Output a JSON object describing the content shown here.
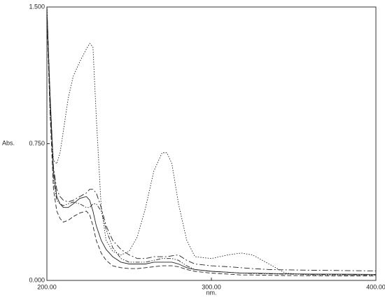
{
  "chart_data": {
    "type": "line",
    "xlabel": "nm.",
    "ylabel": "Abs.",
    "xlim": [
      200,
      400
    ],
    "ylim": [
      0,
      1.5
    ],
    "xticks": [
      {
        "value": 200,
        "label": "200.00"
      },
      {
        "value": 300,
        "label": "300.00"
      },
      {
        "value": 400,
        "label": "400.00"
      }
    ],
    "yticks": [
      {
        "value": 0,
        "label": "0.000"
      },
      {
        "value": 0.75,
        "label": "0.750"
      },
      {
        "value": 1.5,
        "label": "1.500"
      }
    ],
    "x": [
      200,
      202,
      204,
      206,
      208,
      210,
      213,
      216,
      220,
      224,
      226,
      228,
      230,
      233,
      236,
      240,
      245,
      250,
      255,
      260,
      265,
      270,
      273,
      276,
      280,
      285,
      290,
      300,
      310,
      318,
      325,
      335,
      345,
      360,
      380,
      400
    ],
    "series": [
      {
        "color": "#222",
        "dash": "1.5,2",
        "values": [
          1.5,
          0.9,
          0.66,
          0.64,
          0.7,
          0.82,
          1.0,
          1.12,
          1.2,
          1.27,
          1.3,
          1.28,
          0.9,
          0.4,
          0.22,
          0.16,
          0.14,
          0.16,
          0.24,
          0.4,
          0.6,
          0.7,
          0.7,
          0.64,
          0.42,
          0.22,
          0.13,
          0.12,
          0.14,
          0.15,
          0.14,
          0.09,
          0.04,
          0.03,
          0.03,
          0.03
        ]
      },
      {
        "color": "#222",
        "dash": "none",
        "values": [
          1.48,
          1.0,
          0.6,
          0.46,
          0.42,
          0.4,
          0.4,
          0.42,
          0.45,
          0.46,
          0.44,
          0.38,
          0.3,
          0.22,
          0.17,
          0.13,
          0.1,
          0.09,
          0.09,
          0.09,
          0.1,
          0.1,
          0.1,
          0.1,
          0.09,
          0.07,
          0.06,
          0.05,
          0.045,
          0.04,
          0.04,
          0.038,
          0.036,
          0.035,
          0.034,
          0.033
        ]
      },
      {
        "color": "#222",
        "dash": "8,3,2,3",
        "values": [
          1.5,
          1.0,
          0.62,
          0.5,
          0.46,
          0.44,
          0.43,
          0.44,
          0.46,
          0.48,
          0.5,
          0.5,
          0.48,
          0.4,
          0.3,
          0.22,
          0.17,
          0.14,
          0.12,
          0.12,
          0.13,
          0.13,
          0.13,
          0.135,
          0.14,
          0.11,
          0.09,
          0.08,
          0.075,
          0.07,
          0.065,
          0.06,
          0.058,
          0.056,
          0.054,
          0.052
        ]
      },
      {
        "color": "#222",
        "dash": "6,3",
        "values": [
          1.45,
          0.9,
          0.5,
          0.38,
          0.34,
          0.32,
          0.33,
          0.35,
          0.37,
          0.38,
          0.36,
          0.3,
          0.22,
          0.15,
          0.11,
          0.08,
          0.07,
          0.065,
          0.065,
          0.07,
          0.075,
          0.08,
          0.08,
          0.08,
          0.075,
          0.06,
          0.05,
          0.04,
          0.035,
          0.03,
          0.03,
          0.028,
          0.027,
          0.026,
          0.025,
          0.025
        ]
      },
      {
        "color": "#222",
        "dash": "6,2,1.5,2,1.5,2",
        "values": [
          1.5,
          0.95,
          0.55,
          0.44,
          0.42,
          0.41,
          0.42,
          0.43,
          0.42,
          0.4,
          0.4,
          0.42,
          0.42,
          0.38,
          0.28,
          0.18,
          0.12,
          0.1,
          0.1,
          0.1,
          0.11,
          0.12,
          0.12,
          0.12,
          0.11,
          0.08,
          0.06,
          0.05,
          0.045,
          0.04,
          0.038,
          0.036,
          0.035,
          0.033,
          0.032,
          0.03
        ]
      }
    ]
  }
}
